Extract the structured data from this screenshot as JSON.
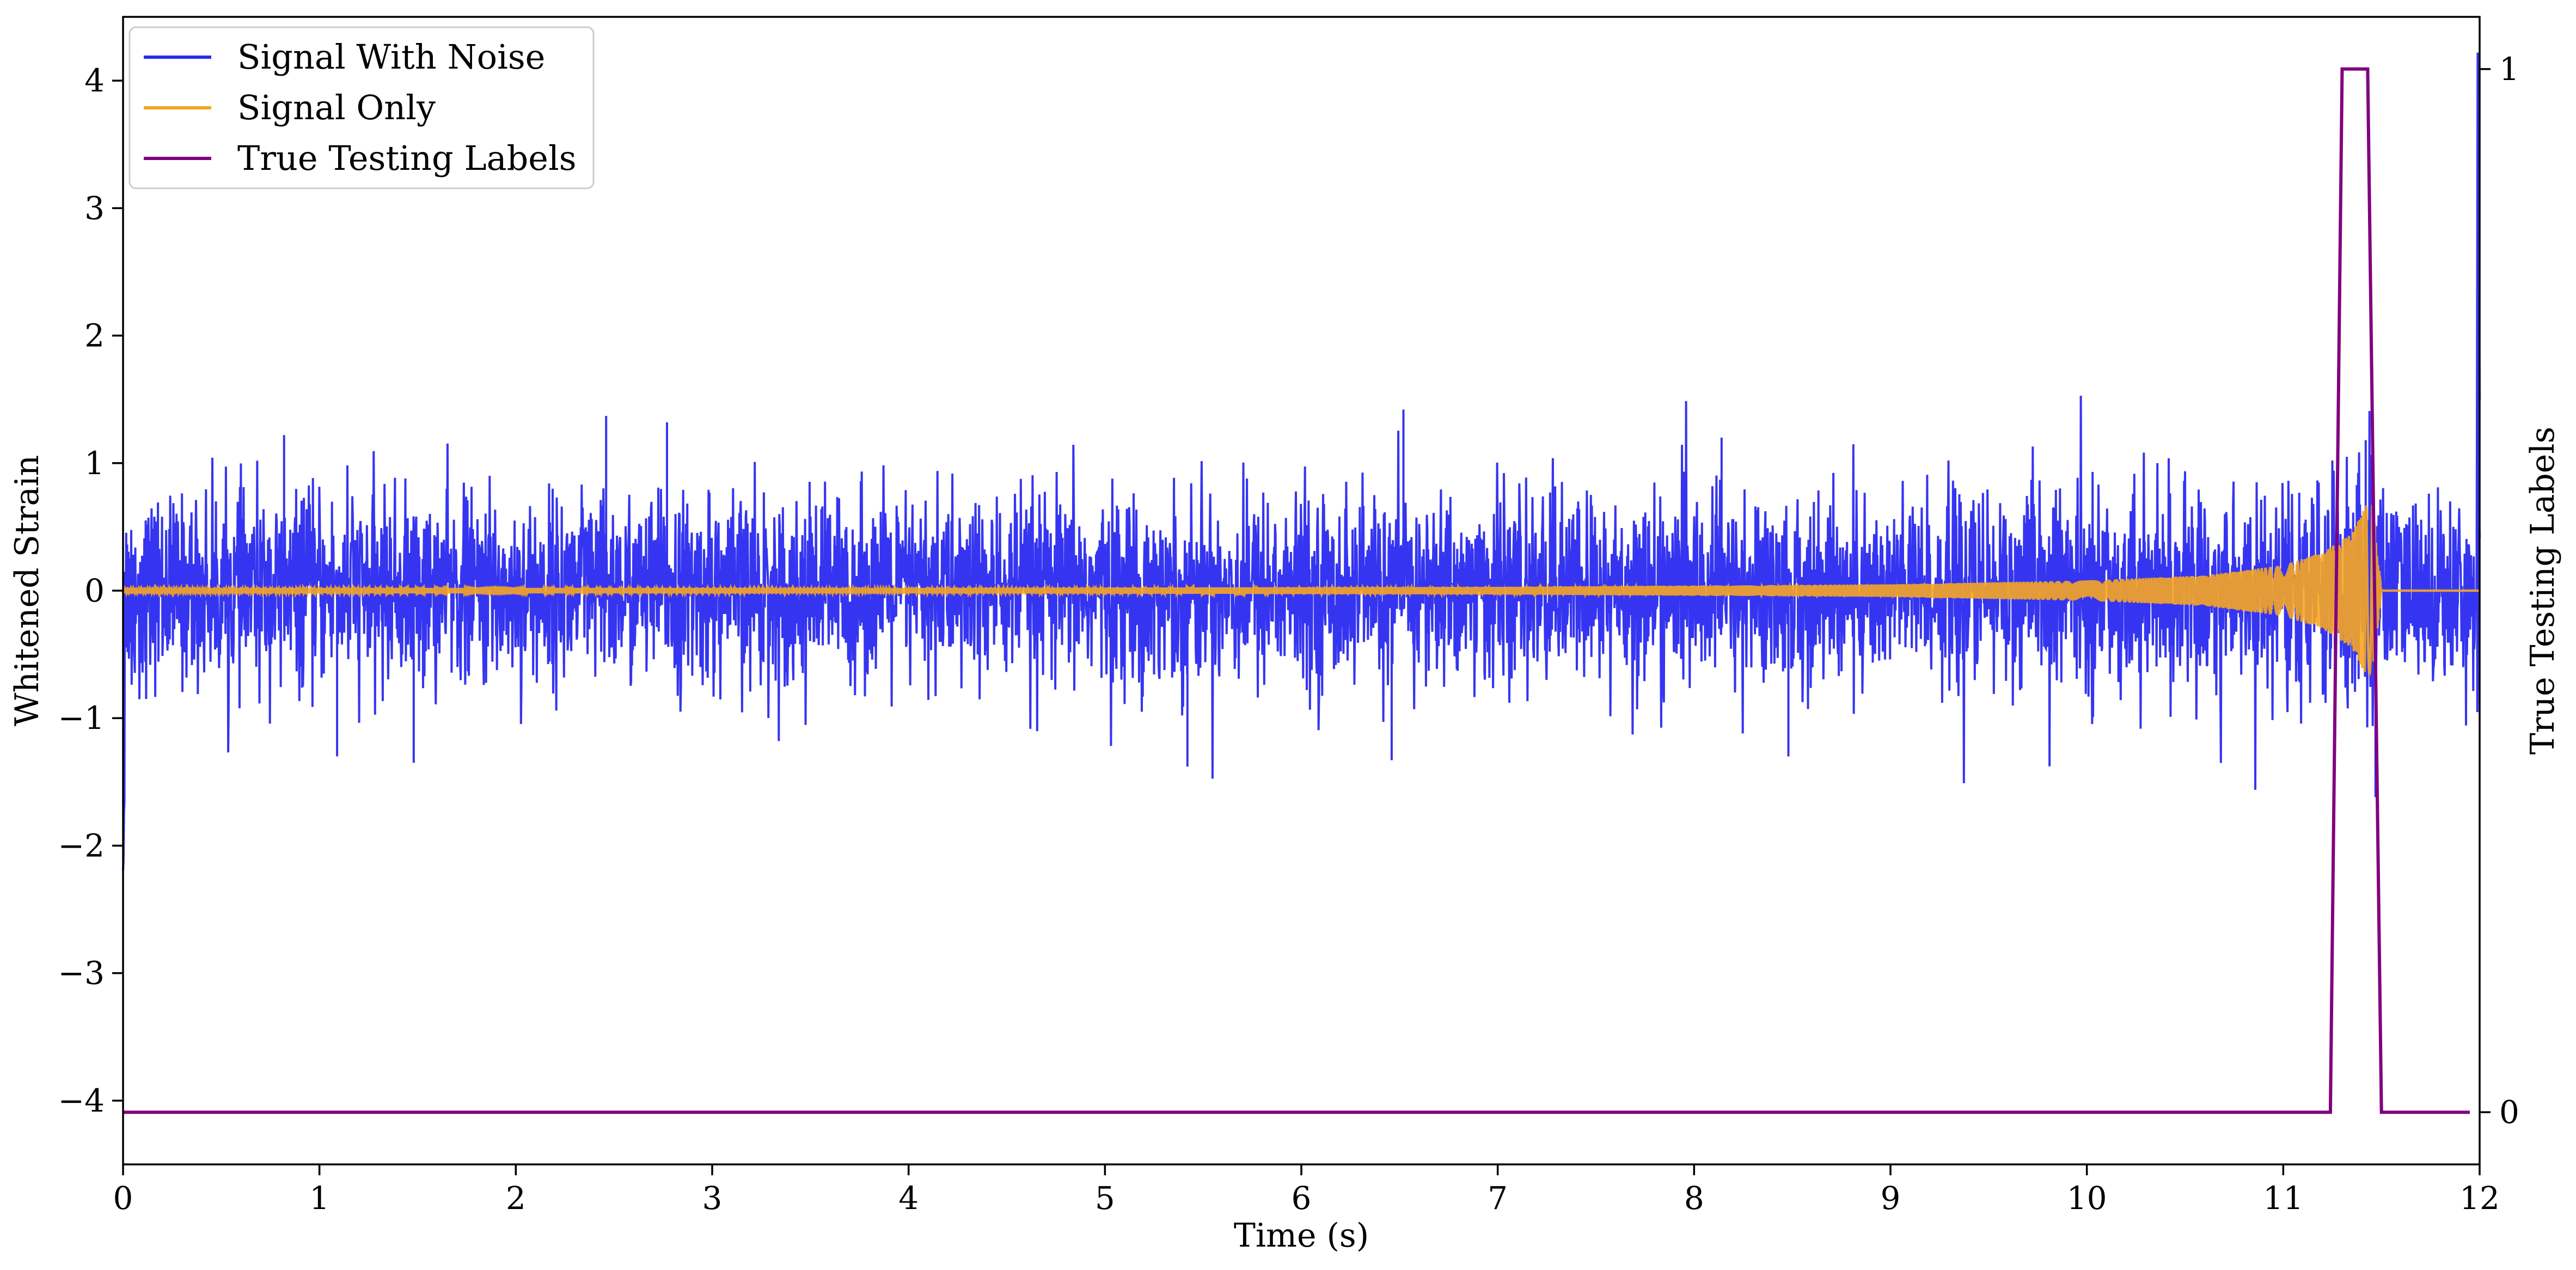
{
  "chart_data": {
    "type": "line",
    "title": "",
    "xlabel": "Time (s)",
    "ylabel": "Whitened Strain",
    "y2label": "True Testing Labels",
    "xlim": [
      0,
      12
    ],
    "ylim": [
      -4.5,
      4.5
    ],
    "y2lim": [
      -0.05,
      1.05
    ],
    "xticks": [
      0,
      1,
      2,
      3,
      4,
      5,
      6,
      7,
      8,
      9,
      10,
      11,
      12
    ],
    "xtick_labels": [
      "0",
      "1",
      "2",
      "3",
      "4",
      "5",
      "6",
      "7",
      "8",
      "9",
      "10",
      "11",
      "12"
    ],
    "yticks": [
      -4,
      -3,
      -2,
      -1,
      0,
      1,
      2,
      3,
      4
    ],
    "ytick_labels": [
      "−4",
      "−3",
      "−2",
      "−1",
      "0",
      "1",
      "2",
      "3",
      "4"
    ],
    "y2ticks": [
      0,
      1
    ],
    "y2tick_labels": [
      "0",
      "1"
    ],
    "grid": false,
    "legend_position": "top-left",
    "series": [
      {
        "name": "Signal With Noise",
        "color": "#2a2af0",
        "axis": "left",
        "description": "Whitened strain with noise; dense noise band of roughly ±0.6 with peaks to ±1.4, spike to about 4.2 near t=12",
        "peaks": [
          {
            "x": 0.82,
            "y": 1.22
          },
          {
            "x": 1.09,
            "y": -1.3
          },
          {
            "x": 1.48,
            "y": -1.35
          },
          {
            "x": 2.46,
            "y": 1.37
          },
          {
            "x": 2.77,
            "y": 1.32
          },
          {
            "x": 5.42,
            "y": -1.38
          },
          {
            "x": 6.52,
            "y": 1.42
          },
          {
            "x": 6.46,
            "y": -1.33
          },
          {
            "x": 8.14,
            "y": 1.2
          },
          {
            "x": 8.48,
            "y": -1.3
          },
          {
            "x": 11.42,
            "y": 1.18
          },
          {
            "x": 11.47,
            "y": -1.62
          },
          {
            "x": 11.99,
            "y": 4.22
          }
        ]
      },
      {
        "name": "Signal Only",
        "color": "#f5a623",
        "axis": "left",
        "description": "Chirp waveform, amplitude near 0 growing to about ±0.8 before merger at t≈11.5",
        "envelope": [
          {
            "x": 0,
            "y": 0.02
          },
          {
            "x": 4,
            "y": 0.02
          },
          {
            "x": 7,
            "y": 0.03
          },
          {
            "x": 9,
            "y": 0.05
          },
          {
            "x": 10,
            "y": 0.08
          },
          {
            "x": 10.6,
            "y": 0.12
          },
          {
            "x": 11.0,
            "y": 0.2
          },
          {
            "x": 11.2,
            "y": 0.3
          },
          {
            "x": 11.35,
            "y": 0.45
          },
          {
            "x": 11.45,
            "y": 0.75
          },
          {
            "x": 11.5,
            "y": 0.0
          }
        ]
      },
      {
        "name": "True Testing Labels",
        "color": "#800080",
        "axis": "right",
        "x": [
          0,
          11.24,
          11.3,
          11.43,
          11.5,
          11.95
        ],
        "y": [
          0,
          0,
          1,
          1,
          0,
          0
        ]
      }
    ]
  }
}
